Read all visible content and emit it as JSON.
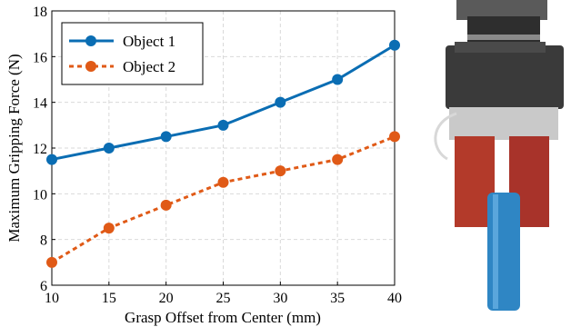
{
  "chart_data": {
    "type": "line",
    "x": [
      10,
      15,
      20,
      25,
      30,
      35,
      40
    ],
    "series": [
      {
        "name": "Object 1",
        "values": [
          11.5,
          12.0,
          12.5,
          13.0,
          14.0,
          15.0,
          16.5
        ],
        "color": "#0a6db3",
        "style": "solid"
      },
      {
        "name": "Object 2",
        "values": [
          7.0,
          8.5,
          9.5,
          10.5,
          11.0,
          11.5,
          12.5
        ],
        "color": "#e05a17",
        "style": "dashed"
      }
    ],
    "xlabel": "Grasp Offset from Center (mm)",
    "ylabel": "Maximum Gripping Force (N)",
    "xlim": [
      10,
      40
    ],
    "ylim": [
      6,
      18
    ],
    "xticks": [
      10,
      15,
      20,
      25,
      30,
      35,
      40
    ],
    "yticks": [
      6,
      8,
      10,
      12,
      14,
      16,
      18
    ],
    "grid": true,
    "legend_position": "top-left"
  },
  "photo": {
    "icon": "robot-gripper-photo",
    "colors": {
      "housing": "#3a3a3a",
      "fingers": "#b33a2a",
      "object": "#2f86c4",
      "metal": "#c9c9c9"
    }
  }
}
